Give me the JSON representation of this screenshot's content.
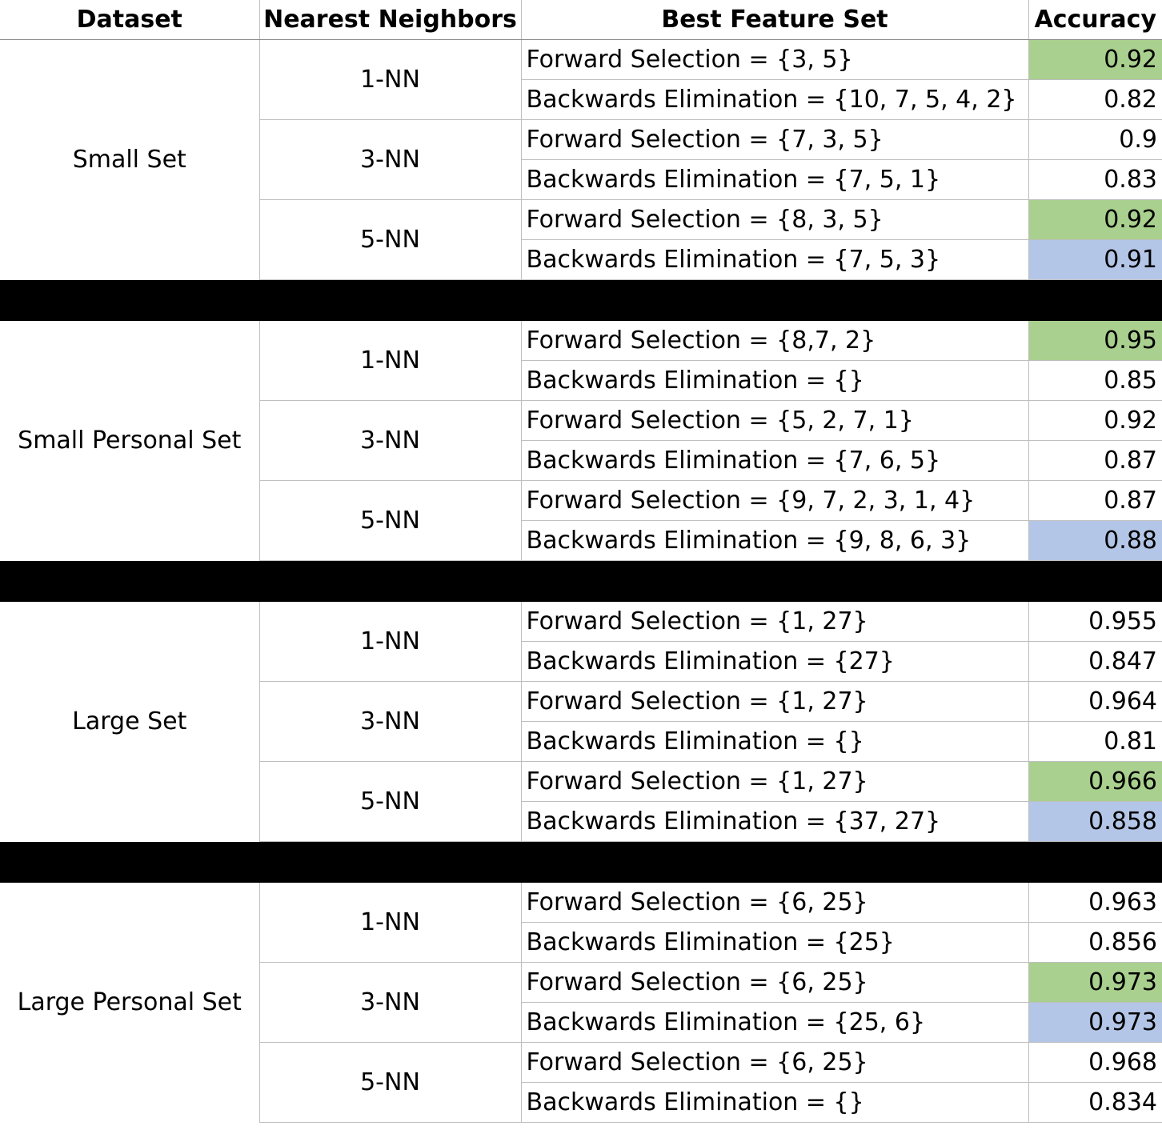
{
  "headers": {
    "dataset": "Dataset",
    "nearest_neighbors": "Nearest Neighbors",
    "best_feature_set": "Best Feature Set",
    "accuracy": "Accuracy"
  },
  "colors": {
    "best_forward_highlight": "#a9d08e",
    "best_backward_highlight": "#b4c6e7",
    "separator": "#000000"
  },
  "groups": [
    {
      "dataset": "Small Set",
      "neighbors": [
        {
          "k": "1-NN",
          "rows": [
            {
              "feature_set": "Forward Selection = {3, 5}",
              "accuracy": "0.92",
              "highlight": "green"
            },
            {
              "feature_set": "Backwards Elimination = {10, 7, 5, 4, 2}",
              "accuracy": "0.82",
              "highlight": ""
            }
          ]
        },
        {
          "k": "3-NN",
          "rows": [
            {
              "feature_set": "Forward Selection = {7, 3, 5}",
              "accuracy": "0.9",
              "highlight": ""
            },
            {
              "feature_set": "Backwards Elimination = {7, 5, 1}",
              "accuracy": "0.83",
              "highlight": ""
            }
          ]
        },
        {
          "k": "5-NN",
          "rows": [
            {
              "feature_set": "Forward Selection = {8, 3, 5}",
              "accuracy": "0.92",
              "highlight": "green"
            },
            {
              "feature_set": "Backwards Elimination = {7, 5, 3}",
              "accuracy": "0.91",
              "highlight": "blue"
            }
          ]
        }
      ]
    },
    {
      "dataset": "Small Personal Set",
      "neighbors": [
        {
          "k": "1-NN",
          "rows": [
            {
              "feature_set": "Forward Selection = {8,7, 2}",
              "accuracy": "0.95",
              "highlight": "green"
            },
            {
              "feature_set": "Backwards Elimination = {}",
              "accuracy": "0.85",
              "highlight": ""
            }
          ]
        },
        {
          "k": "3-NN",
          "rows": [
            {
              "feature_set": "Forward Selection = {5, 2, 7, 1}",
              "accuracy": "0.92",
              "highlight": ""
            },
            {
              "feature_set": "Backwards Elimination = {7, 6, 5}",
              "accuracy": "0.87",
              "highlight": ""
            }
          ]
        },
        {
          "k": "5-NN",
          "rows": [
            {
              "feature_set": "Forward Selection = {9, 7, 2, 3, 1, 4}",
              "accuracy": "0.87",
              "highlight": ""
            },
            {
              "feature_set": "Backwards Elimination = {9, 8, 6, 3}",
              "accuracy": "0.88",
              "highlight": "blue"
            }
          ]
        }
      ]
    },
    {
      "dataset": "Large Set",
      "neighbors": [
        {
          "k": "1-NN",
          "rows": [
            {
              "feature_set": "Forward Selection = {1, 27}",
              "accuracy": "0.955",
              "highlight": ""
            },
            {
              "feature_set": "Backwards Elimination = {27}",
              "accuracy": "0.847",
              "highlight": ""
            }
          ]
        },
        {
          "k": "3-NN",
          "rows": [
            {
              "feature_set": "Forward Selection = {1, 27}",
              "accuracy": "0.964",
              "highlight": ""
            },
            {
              "feature_set": "Backwards Elimination = {}",
              "accuracy": "0.81",
              "highlight": ""
            }
          ]
        },
        {
          "k": "5-NN",
          "rows": [
            {
              "feature_set": "Forward Selection = {1, 27}",
              "accuracy": "0.966",
              "highlight": "green"
            },
            {
              "feature_set": "Backwards Elimination = {37, 27}",
              "accuracy": "0.858",
              "highlight": "blue"
            }
          ]
        }
      ]
    },
    {
      "dataset": "Large Personal Set",
      "neighbors": [
        {
          "k": "1-NN",
          "rows": [
            {
              "feature_set": "Forward Selection = {6, 25}",
              "accuracy": "0.963",
              "highlight": ""
            },
            {
              "feature_set": "Backwards Elimination = {25}",
              "accuracy": "0.856",
              "highlight": ""
            }
          ]
        },
        {
          "k": "3-NN",
          "rows": [
            {
              "feature_set": "Forward Selection = {6, 25}",
              "accuracy": "0.973",
              "highlight": "green"
            },
            {
              "feature_set": "Backwards Elimination = {25, 6}",
              "accuracy": "0.973",
              "highlight": "blue"
            }
          ]
        },
        {
          "k": "5-NN",
          "rows": [
            {
              "feature_set": "Forward Selection = {6, 25}",
              "accuracy": "0.968",
              "highlight": ""
            },
            {
              "feature_set": "Backwards Elimination = {}",
              "accuracy": "0.834",
              "highlight": ""
            }
          ]
        }
      ]
    }
  ]
}
